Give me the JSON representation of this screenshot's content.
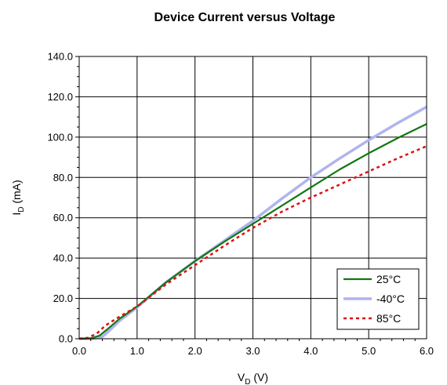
{
  "chart_data": {
    "type": "line",
    "title": "Device Current versus Voltage",
    "xlabel": "V",
    "xlabel_sub": "D",
    "xlabel_unit": " (V)",
    "ylabel": "I",
    "ylabel_sub": "D",
    "ylabel_unit": " (mA)",
    "xlim": [
      0,
      6
    ],
    "ylim": [
      0,
      140
    ],
    "x_ticks": [
      "0.0",
      "1.0",
      "2.0",
      "3.0",
      "4.0",
      "5.0",
      "6.0"
    ],
    "y_ticks": [
      "0.0",
      "20.0",
      "40.0",
      "60.0",
      "80.0",
      "100.0",
      "120.0",
      "140.0"
    ],
    "grid": true,
    "legend_position": "bottom-right",
    "series": [
      {
        "name": "25°C",
        "color": "#117711",
        "style": "solid",
        "x": [
          0.0,
          0.2,
          0.35,
          0.5,
          0.7,
          1.0,
          1.5,
          2.0,
          2.5,
          3.0,
          3.5,
          4.0,
          4.5,
          5.0,
          5.5,
          6.0
        ],
        "y": [
          0.0,
          0.2,
          1.5,
          5.0,
          10.0,
          16.0,
          28.0,
          38.5,
          48.0,
          57.0,
          66.0,
          75.0,
          84.0,
          92.0,
          99.5,
          106.5
        ]
      },
      {
        "name": "-40°C",
        "color": "#b0b4ee",
        "style": "solid-thick",
        "x": [
          0.0,
          0.25,
          0.4,
          0.5,
          0.7,
          1.0,
          1.5,
          2.0,
          2.5,
          3.0,
          3.5,
          4.0,
          4.5,
          5.0,
          5.5,
          6.0
        ],
        "y": [
          0.0,
          0.1,
          1.0,
          3.5,
          9.0,
          15.5,
          28.0,
          38.5,
          48.5,
          58.5,
          69.5,
          80.0,
          89.5,
          98.5,
          107.0,
          115.0
        ]
      },
      {
        "name": "85°C",
        "color": "#dd1111",
        "style": "dotted",
        "x": [
          0.0,
          0.15,
          0.3,
          0.45,
          0.7,
          1.0,
          1.5,
          2.0,
          2.5,
          3.0,
          3.5,
          4.0,
          4.5,
          5.0,
          5.5,
          6.0
        ],
        "y": [
          0.0,
          0.5,
          2.5,
          6.5,
          11.0,
          16.0,
          27.0,
          36.5,
          46.0,
          55.0,
          63.0,
          70.0,
          76.5,
          83.0,
          89.5,
          95.5
        ]
      }
    ]
  }
}
